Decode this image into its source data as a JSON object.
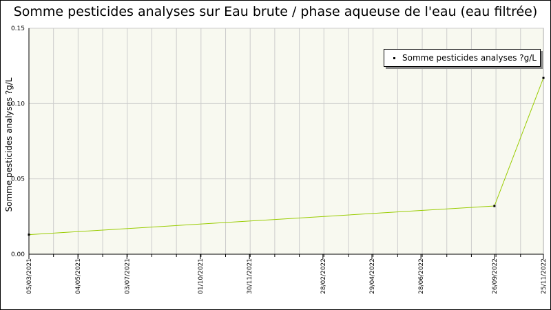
{
  "chart_data": {
    "type": "line",
    "title": "Somme pesticides analyses sur Eau brute / phase aqueuse de l'eau (eau filtrée)",
    "ylabel": "Somme pesticides analyses ?g/L",
    "xlabel": "",
    "ylim": [
      0,
      0.15
    ],
    "yticks": [
      "0.00",
      "0.05",
      "0.10",
      "0.15"
    ],
    "xlim": [
      "2021-03-05",
      "2022-11-25"
    ],
    "xtick_labels": [
      "05/03/2021",
      "04/05/2021",
      "03/07/2021",
      "01/10/2021",
      "30/11/2021",
      "28/02/2022",
      "29/04/2022",
      "28/06/2022",
      "26/09/2022",
      "25/11/2022"
    ],
    "xtick_dates": [
      "2021-03-05",
      "2021-05-04",
      "2021-07-03",
      "2021-10-01",
      "2021-11-30",
      "2022-02-28",
      "2022-04-29",
      "2022-06-28",
      "2022-09-26",
      "2022-11-25"
    ],
    "grid": true,
    "legend": "top-right",
    "series": [
      {
        "name": "Somme pesticides analyses ?g/L",
        "color": "#99cc00",
        "x": [
          "2021-03-05",
          "2022-09-26",
          "2022-11-25"
        ],
        "y": [
          0.013,
          0.032,
          0.117
        ]
      }
    ]
  },
  "colors": {
    "plot_background": "#f8f9f0",
    "grid": "#cccccc",
    "line": "#99cc00",
    "marker": "#000000"
  }
}
